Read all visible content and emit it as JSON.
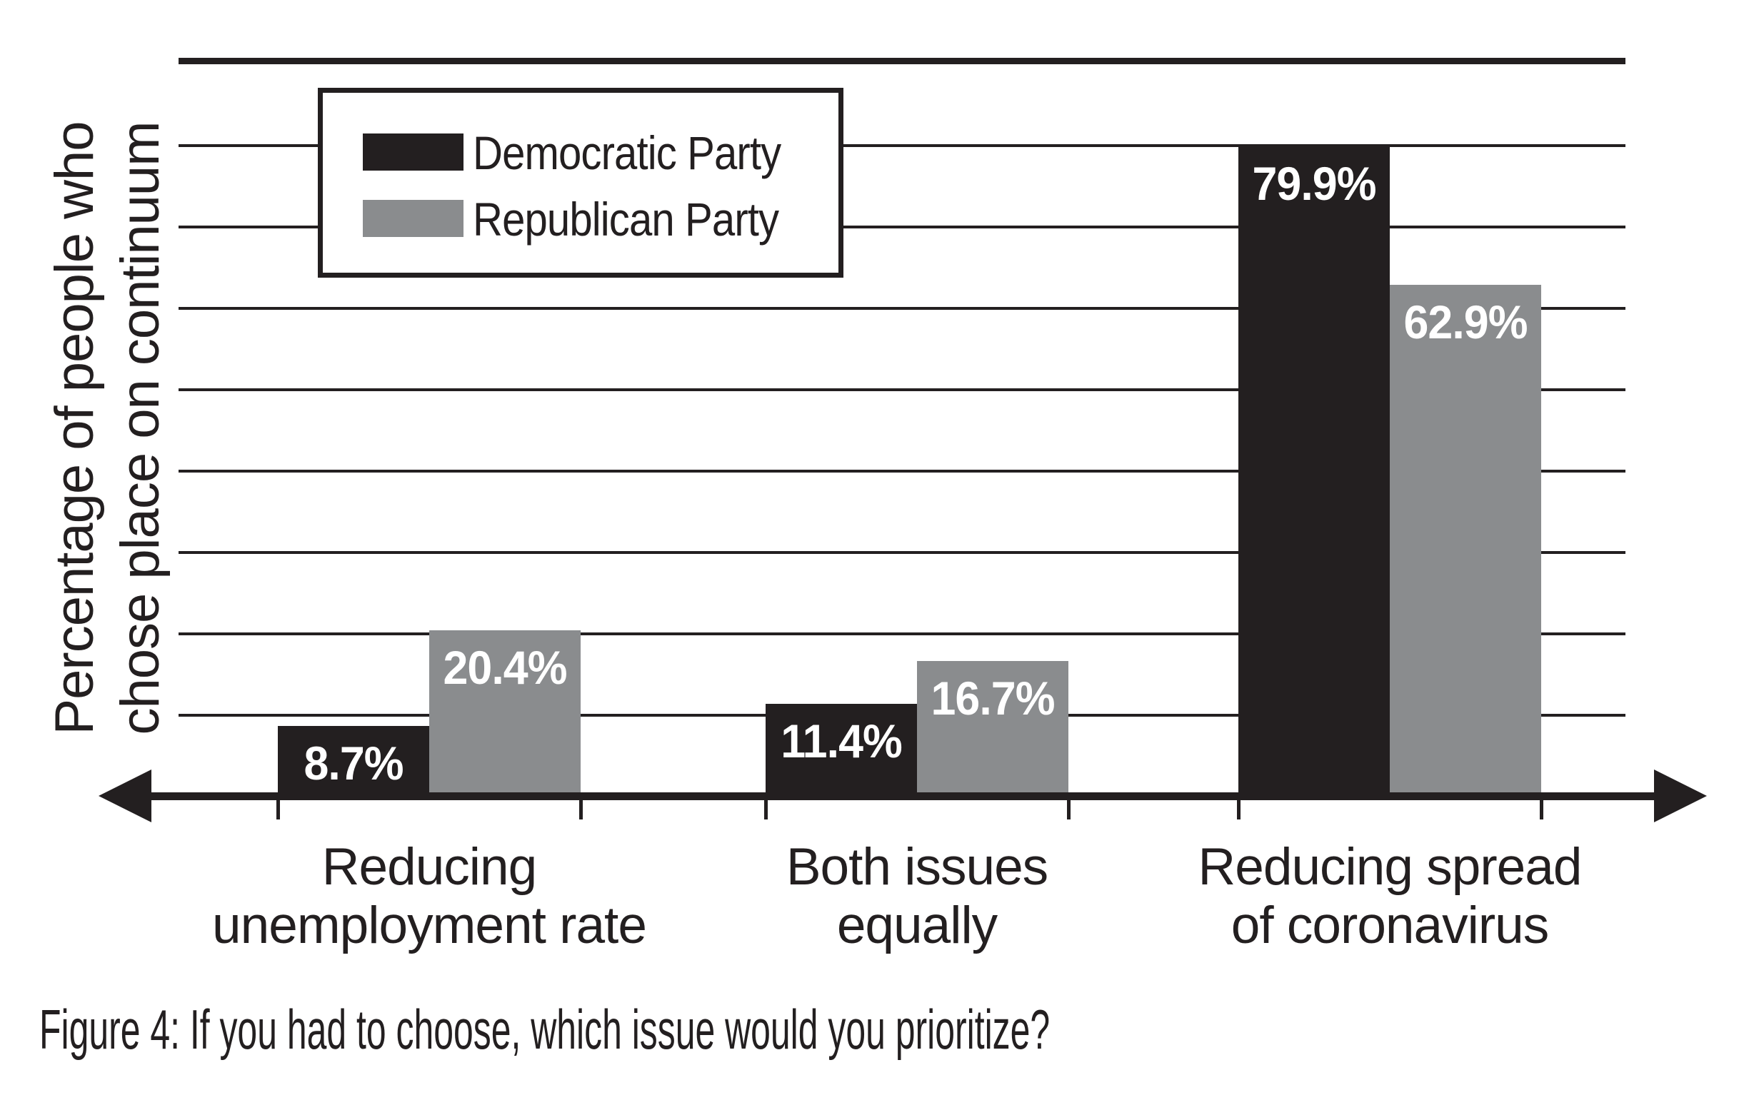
{
  "figure": {
    "caption": "Figure 4: If you had to choose, which issue would you prioritize?"
  },
  "chart_data": {
    "type": "bar",
    "title": "",
    "ylabel": "Percentage of people who\nchose place on continuum",
    "xlabel": "",
    "ylim": [
      0,
      90
    ],
    "gridline_step": 10,
    "grid": true,
    "legend_position": "top-left",
    "categories": [
      "Reducing\nunemployment rate",
      "Both issues\nequally",
      "Reducing spread\nof coronavirus"
    ],
    "series": [
      {
        "name": "Democratic Party",
        "color": "#231f20",
        "values": [
          8.7,
          11.4,
          79.9
        ],
        "value_labels": [
          "8.7%",
          "11.4%",
          "79.9%"
        ]
      },
      {
        "name": "Republican Party",
        "color": "#8a8c8e",
        "values": [
          20.4,
          16.7,
          62.9
        ],
        "value_labels": [
          "20.4%",
          "16.7%",
          "62.9%"
        ]
      }
    ]
  },
  "colors": {
    "ink": "#231f20",
    "bar_gray": "#8a8c8e",
    "value_label_text": "#ffffff",
    "background": "#ffffff"
  }
}
